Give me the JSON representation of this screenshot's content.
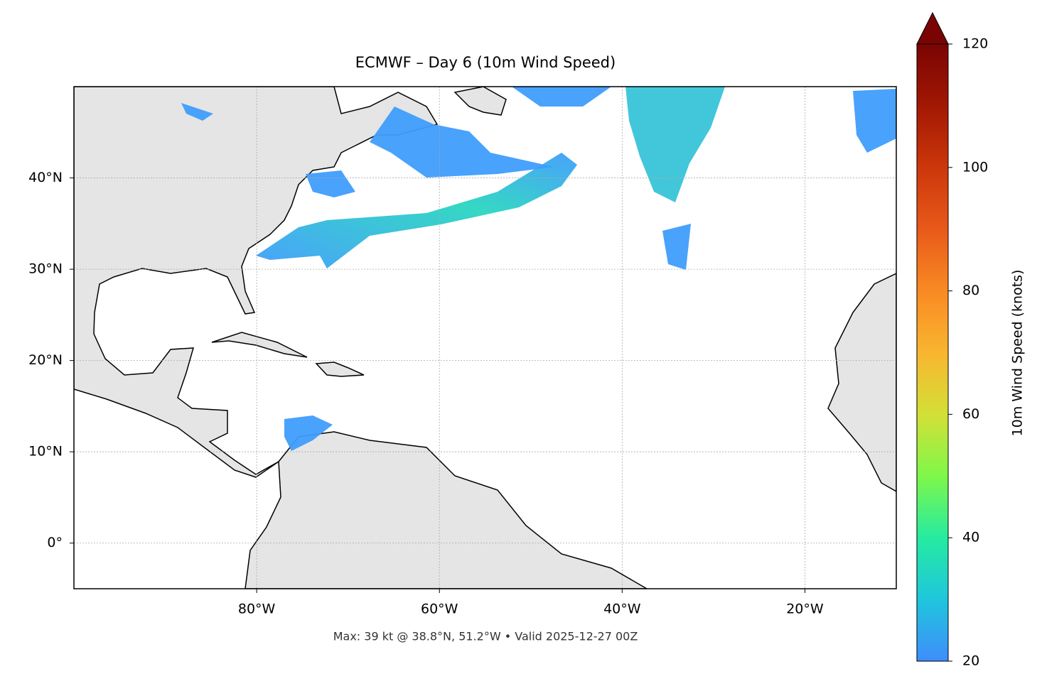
{
  "map": {
    "title": "ECMWF – Day 6 (10m Wind Speed)",
    "lonlim": [
      -100,
      -10
    ],
    "latlim": [
      -5,
      50
    ],
    "xticks": [
      {
        "value": -80,
        "label": "80°W"
      },
      {
        "value": -60,
        "label": "60°W"
      },
      {
        "value": -40,
        "label": "40°W"
      },
      {
        "value": -20,
        "label": "20°W"
      }
    ],
    "yticks": [
      {
        "value": 0,
        "label": "0°"
      },
      {
        "value": 10,
        "label": "10°N"
      },
      {
        "value": 20,
        "label": "20°N"
      },
      {
        "value": 30,
        "label": "30°N"
      },
      {
        "value": 40,
        "label": "40°N"
      }
    ],
    "grid": true,
    "colorbar": {
      "label": "10m Wind Speed (knots)",
      "lim": [
        20,
        120
      ],
      "ticks": [
        20,
        40,
        60,
        80,
        100,
        120
      ],
      "extend": "max"
    },
    "footer": "Max: 39 kt @ 38.8°N, 51.2°W • Valid 2025-12-27 00Z"
  }
}
